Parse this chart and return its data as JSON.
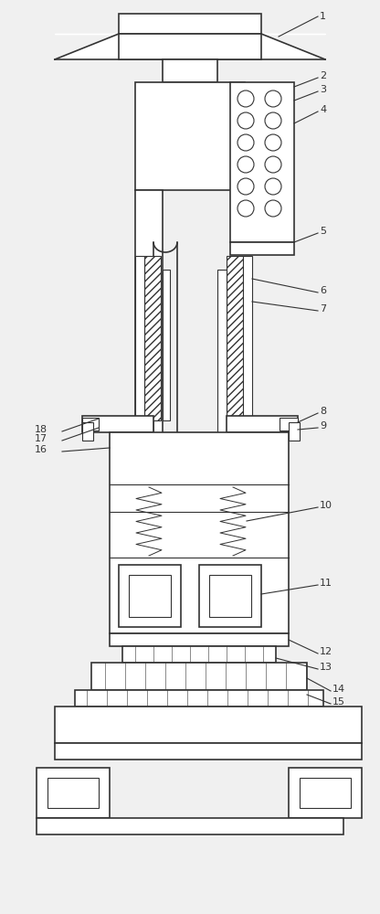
{
  "bg_color": "#f0f0f0",
  "line_color": "#333333",
  "fig_width": 4.16,
  "fig_height": 10.0,
  "dpi": 100,
  "lw": 0.8,
  "lw2": 1.2
}
